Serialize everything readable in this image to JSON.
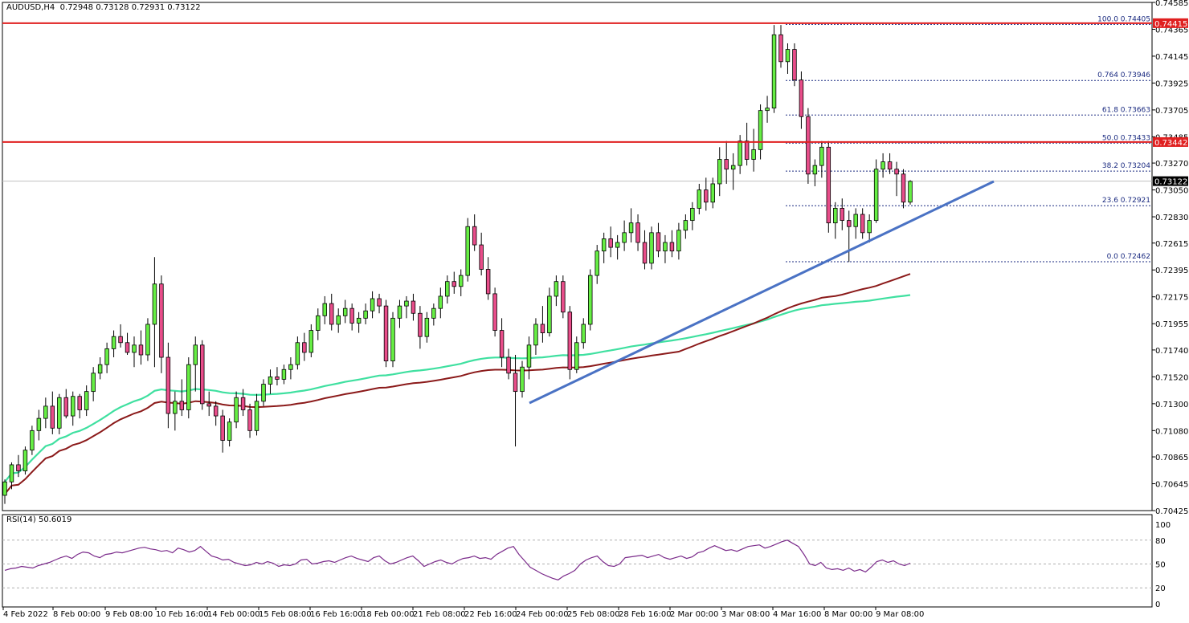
{
  "header": {
    "symbol": "AUDUSD,H4",
    "ohlc": "0.72948 0.73128 0.72931 0.73122"
  },
  "rsi": {
    "label": "RSI(14) 50.6019",
    "levels": [
      100,
      80,
      50,
      20,
      0
    ],
    "values": [
      42,
      44,
      45,
      47,
      46,
      45,
      48,
      50,
      52,
      55,
      58,
      60,
      57,
      62,
      65,
      64,
      60,
      58,
      62,
      63,
      65,
      64,
      66,
      68,
      70,
      71,
      69,
      68,
      66,
      67,
      64,
      70,
      68,
      65,
      67,
      72,
      66,
      60,
      58,
      55,
      56,
      52,
      50,
      48,
      49,
      52,
      50,
      53,
      51,
      47,
      49,
      48,
      50,
      55,
      56,
      50,
      51,
      53,
      54,
      52,
      55,
      58,
      60,
      57,
      55,
      53,
      58,
      60,
      54,
      50,
      52,
      55,
      58,
      60,
      54,
      47,
      50,
      53,
      55,
      52,
      50,
      54,
      57,
      58,
      60,
      57,
      58,
      56,
      62,
      66,
      70,
      72,
      62,
      54,
      46,
      42,
      38,
      35,
      32,
      30,
      35,
      38,
      42,
      50,
      55,
      58,
      60,
      53,
      48,
      47,
      50,
      58,
      59,
      60,
      61,
      58,
      60,
      62,
      58,
      56,
      58,
      60,
      57,
      59,
      64,
      66,
      70,
      73,
      70,
      67,
      68,
      66,
      69,
      72,
      73,
      74,
      70,
      72,
      75,
      78,
      80,
      76,
      72,
      62,
      50,
      48,
      52,
      45,
      43,
      44,
      42,
      45,
      41,
      43,
      40,
      46,
      53,
      55,
      52,
      54,
      50,
      48,
      51
    ]
  },
  "levels": {
    "resistance_top": "0.74415",
    "resistance_mid": "0.73442",
    "current": "0.73122"
  },
  "fib": [
    {
      "label": "100.0 0.74405",
      "value": 0.74405
    },
    {
      "label": "0.764 0.73946",
      "value": 0.73946
    },
    {
      "label": "61.8 0.73663",
      "value": 0.73663
    },
    {
      "label": "50.0 0.73433",
      "value": 0.73433
    },
    {
      "label": "38.2 0.73204",
      "value": 0.73204
    },
    {
      "label": "23.6 0.72921",
      "value": 0.72921
    },
    {
      "label": "0.0 0.72462",
      "value": 0.72462
    }
  ],
  "chart_data": {
    "type": "candlestick",
    "ylim": [
      0.70425,
      0.74585
    ],
    "y_ticks": [
      "0.74585",
      "0.74365",
      "0.74145",
      "0.73925",
      "0.73705",
      "0.73485",
      "0.73270",
      "0.73050",
      "0.72830",
      "0.72615",
      "0.72395",
      "0.72175",
      "0.71955",
      "0.71740",
      "0.71520",
      "0.71300",
      "0.71080",
      "0.70865",
      "0.70645",
      "0.70425"
    ],
    "x_ticks": [
      "4 Feb 2022",
      "8 Feb 00:00",
      "9 Feb 08:00",
      "10 Feb 16:00",
      "14 Feb 00:00",
      "15 Feb 08:00",
      "16 Feb 16:00",
      "18 Feb 00:00",
      "21 Feb 08:00",
      "22 Feb 16:00",
      "24 Feb 00:00",
      "25 Feb 08:00",
      "28 Feb 16:00",
      "2 Mar 00:00",
      "3 Mar 08:00",
      "4 Mar 16:00",
      "8 Mar 00:00",
      "9 Mar 08:00"
    ],
    "candles": [
      [
        0.7055,
        0.7068,
        0.7048,
        0.7066
      ],
      [
        0.7066,
        0.7082,
        0.706,
        0.708
      ],
      [
        0.708,
        0.7088,
        0.707,
        0.7075
      ],
      [
        0.7075,
        0.7095,
        0.7072,
        0.7092
      ],
      [
        0.7092,
        0.7112,
        0.7088,
        0.7108
      ],
      [
        0.7108,
        0.7125,
        0.71,
        0.7118
      ],
      [
        0.7118,
        0.7135,
        0.711,
        0.7128
      ],
      [
        0.7128,
        0.714,
        0.7105,
        0.711
      ],
      [
        0.711,
        0.7138,
        0.7105,
        0.7135
      ],
      [
        0.7135,
        0.7142,
        0.7118,
        0.712
      ],
      [
        0.712,
        0.714,
        0.7112,
        0.7136
      ],
      [
        0.7136,
        0.7138,
        0.7118,
        0.7125
      ],
      [
        0.7125,
        0.7145,
        0.712,
        0.714
      ],
      [
        0.714,
        0.716,
        0.7132,
        0.7155
      ],
      [
        0.7155,
        0.7168,
        0.715,
        0.7162
      ],
      [
        0.7162,
        0.718,
        0.7155,
        0.7175
      ],
      [
        0.7175,
        0.719,
        0.7168,
        0.7185
      ],
      [
        0.7185,
        0.7195,
        0.7176,
        0.718
      ],
      [
        0.718,
        0.7188,
        0.717,
        0.7172
      ],
      [
        0.7172,
        0.7185,
        0.716,
        0.7178
      ],
      [
        0.7178,
        0.719,
        0.7162,
        0.717
      ],
      [
        0.717,
        0.72,
        0.7165,
        0.7195
      ],
      [
        0.7195,
        0.725,
        0.716,
        0.7228
      ],
      [
        0.7228,
        0.7235,
        0.7155,
        0.7168
      ],
      [
        0.7168,
        0.718,
        0.711,
        0.7122
      ],
      [
        0.7122,
        0.714,
        0.7108,
        0.7132
      ],
      [
        0.7132,
        0.715,
        0.712,
        0.7125
      ],
      [
        0.7125,
        0.7168,
        0.7118,
        0.7162
      ],
      [
        0.7162,
        0.7185,
        0.714,
        0.7178
      ],
      [
        0.7178,
        0.7182,
        0.7125,
        0.713
      ],
      [
        0.713,
        0.714,
        0.712,
        0.7128
      ],
      [
        0.7128,
        0.7132,
        0.7112,
        0.712
      ],
      [
        0.712,
        0.7125,
        0.709,
        0.71
      ],
      [
        0.71,
        0.7118,
        0.7095,
        0.7115
      ],
      [
        0.7115,
        0.714,
        0.711,
        0.7135
      ],
      [
        0.7135,
        0.7142,
        0.712,
        0.7125
      ],
      [
        0.7125,
        0.713,
        0.7102,
        0.7108
      ],
      [
        0.7108,
        0.7138,
        0.7104,
        0.7132
      ],
      [
        0.7132,
        0.715,
        0.7128,
        0.7146
      ],
      [
        0.7146,
        0.7158,
        0.7138,
        0.7152
      ],
      [
        0.7152,
        0.716,
        0.7145,
        0.715
      ],
      [
        0.715,
        0.7162,
        0.7146,
        0.7158
      ],
      [
        0.7158,
        0.7168,
        0.715,
        0.7162
      ],
      [
        0.7162,
        0.7185,
        0.7158,
        0.718
      ],
      [
        0.718,
        0.7188,
        0.7165,
        0.7172
      ],
      [
        0.7172,
        0.7195,
        0.7168,
        0.719
      ],
      [
        0.719,
        0.7208,
        0.7182,
        0.7202
      ],
      [
        0.7202,
        0.7218,
        0.7195,
        0.7212
      ],
      [
        0.7212,
        0.722,
        0.719,
        0.7195
      ],
      [
        0.7195,
        0.7208,
        0.7188,
        0.7202
      ],
      [
        0.7202,
        0.7215,
        0.7196,
        0.7208
      ],
      [
        0.7208,
        0.7212,
        0.719,
        0.7196
      ],
      [
        0.7196,
        0.7205,
        0.7188,
        0.72
      ],
      [
        0.72,
        0.7212,
        0.7195,
        0.7206
      ],
      [
        0.7206,
        0.7222,
        0.72,
        0.7216
      ],
      [
        0.7216,
        0.722,
        0.7204,
        0.721
      ],
      [
        0.721,
        0.7215,
        0.716,
        0.7165
      ],
      [
        0.7165,
        0.7205,
        0.716,
        0.72
      ],
      [
        0.72,
        0.7215,
        0.7192,
        0.721
      ],
      [
        0.721,
        0.7218,
        0.72,
        0.7214
      ],
      [
        0.7214,
        0.722,
        0.7198,
        0.7204
      ],
      [
        0.7204,
        0.721,
        0.7175,
        0.7185
      ],
      [
        0.7185,
        0.7205,
        0.718,
        0.72
      ],
      [
        0.72,
        0.7212,
        0.7194,
        0.7208
      ],
      [
        0.7208,
        0.7225,
        0.72,
        0.7218
      ],
      [
        0.7218,
        0.7235,
        0.7212,
        0.723
      ],
      [
        0.723,
        0.7238,
        0.722,
        0.7226
      ],
      [
        0.7226,
        0.724,
        0.7218,
        0.7235
      ],
      [
        0.7235,
        0.7282,
        0.723,
        0.7275
      ],
      [
        0.7275,
        0.7285,
        0.7255,
        0.726
      ],
      [
        0.726,
        0.727,
        0.7235,
        0.724
      ],
      [
        0.724,
        0.725,
        0.7215,
        0.722
      ],
      [
        0.722,
        0.7225,
        0.7185,
        0.719
      ],
      [
        0.719,
        0.72,
        0.716,
        0.7168
      ],
      [
        0.7168,
        0.7175,
        0.715,
        0.7155
      ],
      [
        0.7155,
        0.717,
        0.7095,
        0.714
      ],
      [
        0.714,
        0.7165,
        0.7135,
        0.716
      ],
      [
        0.716,
        0.7185,
        0.715,
        0.7178
      ],
      [
        0.7178,
        0.72,
        0.717,
        0.7195
      ],
      [
        0.7195,
        0.721,
        0.718,
        0.7188
      ],
      [
        0.7188,
        0.7225,
        0.7185,
        0.7218
      ],
      [
        0.7218,
        0.7235,
        0.721,
        0.723
      ],
      [
        0.723,
        0.7235,
        0.72,
        0.7205
      ],
      [
        0.7205,
        0.721,
        0.715,
        0.7158
      ],
      [
        0.7158,
        0.7185,
        0.7155,
        0.718
      ],
      [
        0.718,
        0.72,
        0.7175,
        0.7195
      ],
      [
        0.7195,
        0.724,
        0.719,
        0.7235
      ],
      [
        0.7235,
        0.726,
        0.7228,
        0.7255
      ],
      [
        0.7255,
        0.727,
        0.7245,
        0.7265
      ],
      [
        0.7265,
        0.7275,
        0.725,
        0.7258
      ],
      [
        0.7258,
        0.7268,
        0.7248,
        0.7262
      ],
      [
        0.7262,
        0.728,
        0.7255,
        0.727
      ],
      [
        0.727,
        0.729,
        0.7262,
        0.7278
      ],
      [
        0.7278,
        0.7285,
        0.7255,
        0.7262
      ],
      [
        0.7262,
        0.7272,
        0.724,
        0.7245
      ],
      [
        0.7245,
        0.7275,
        0.724,
        0.727
      ],
      [
        0.727,
        0.7278,
        0.725,
        0.7255
      ],
      [
        0.7255,
        0.7268,
        0.7245,
        0.7262
      ],
      [
        0.7262,
        0.7272,
        0.725,
        0.7255
      ],
      [
        0.7255,
        0.7278,
        0.7248,
        0.7272
      ],
      [
        0.7272,
        0.7285,
        0.7265,
        0.728
      ],
      [
        0.728,
        0.7295,
        0.7272,
        0.729
      ],
      [
        0.729,
        0.731,
        0.7285,
        0.7305
      ],
      [
        0.7305,
        0.7315,
        0.7288,
        0.7295
      ],
      [
        0.7295,
        0.7315,
        0.729,
        0.731
      ],
      [
        0.731,
        0.734,
        0.73,
        0.733
      ],
      [
        0.733,
        0.7345,
        0.731,
        0.7322
      ],
      [
        0.7322,
        0.7335,
        0.7305,
        0.7325
      ],
      [
        0.7325,
        0.735,
        0.7318,
        0.7345
      ],
      [
        0.7345,
        0.736,
        0.7325,
        0.733
      ],
      [
        0.733,
        0.7355,
        0.732,
        0.7338
      ],
      [
        0.7338,
        0.7375,
        0.733,
        0.737
      ],
      [
        0.737,
        0.7382,
        0.736,
        0.7372
      ],
      [
        0.7372,
        0.744,
        0.7368,
        0.7432
      ],
      [
        0.7432,
        0.744,
        0.7405,
        0.741
      ],
      [
        0.741,
        0.7425,
        0.74,
        0.742
      ],
      [
        0.742,
        0.7425,
        0.739,
        0.7395
      ],
      [
        0.7395,
        0.7402,
        0.7355,
        0.7365
      ],
      [
        0.7365,
        0.7372,
        0.731,
        0.7318
      ],
      [
        0.7318,
        0.733,
        0.7308,
        0.7325
      ],
      [
        0.7325,
        0.7345,
        0.7315,
        0.734
      ],
      [
        0.734,
        0.7345,
        0.727,
        0.7278
      ],
      [
        0.7278,
        0.7295,
        0.7265,
        0.729
      ],
      [
        0.729,
        0.7298,
        0.7272,
        0.728
      ],
      [
        0.728,
        0.7288,
        0.7246,
        0.7275
      ],
      [
        0.7275,
        0.729,
        0.7265,
        0.7285
      ],
      [
        0.7285,
        0.729,
        0.7265,
        0.727
      ],
      [
        0.727,
        0.7285,
        0.7262,
        0.728
      ],
      [
        0.728,
        0.733,
        0.7278,
        0.7322
      ],
      [
        0.7322,
        0.7335,
        0.7315,
        0.7328
      ],
      [
        0.7328,
        0.7335,
        0.7318,
        0.7322
      ],
      [
        0.7322,
        0.7328,
        0.73,
        0.7318
      ],
      [
        0.7318,
        0.7322,
        0.729,
        0.7295
      ],
      [
        0.7295,
        0.7313,
        0.7293,
        0.7312
      ]
    ],
    "ma_slow": {
      "color": "#3fe0a0"
    },
    "ma_fast": {
      "color": "#8b1a1a"
    },
    "trendline": {
      "color": "#4a72c4",
      "from": [
        0.713,
        0.713
      ],
      "to": [
        0.73115,
        0.73115
      ]
    },
    "rsi_ylim": [
      0,
      100
    ]
  }
}
